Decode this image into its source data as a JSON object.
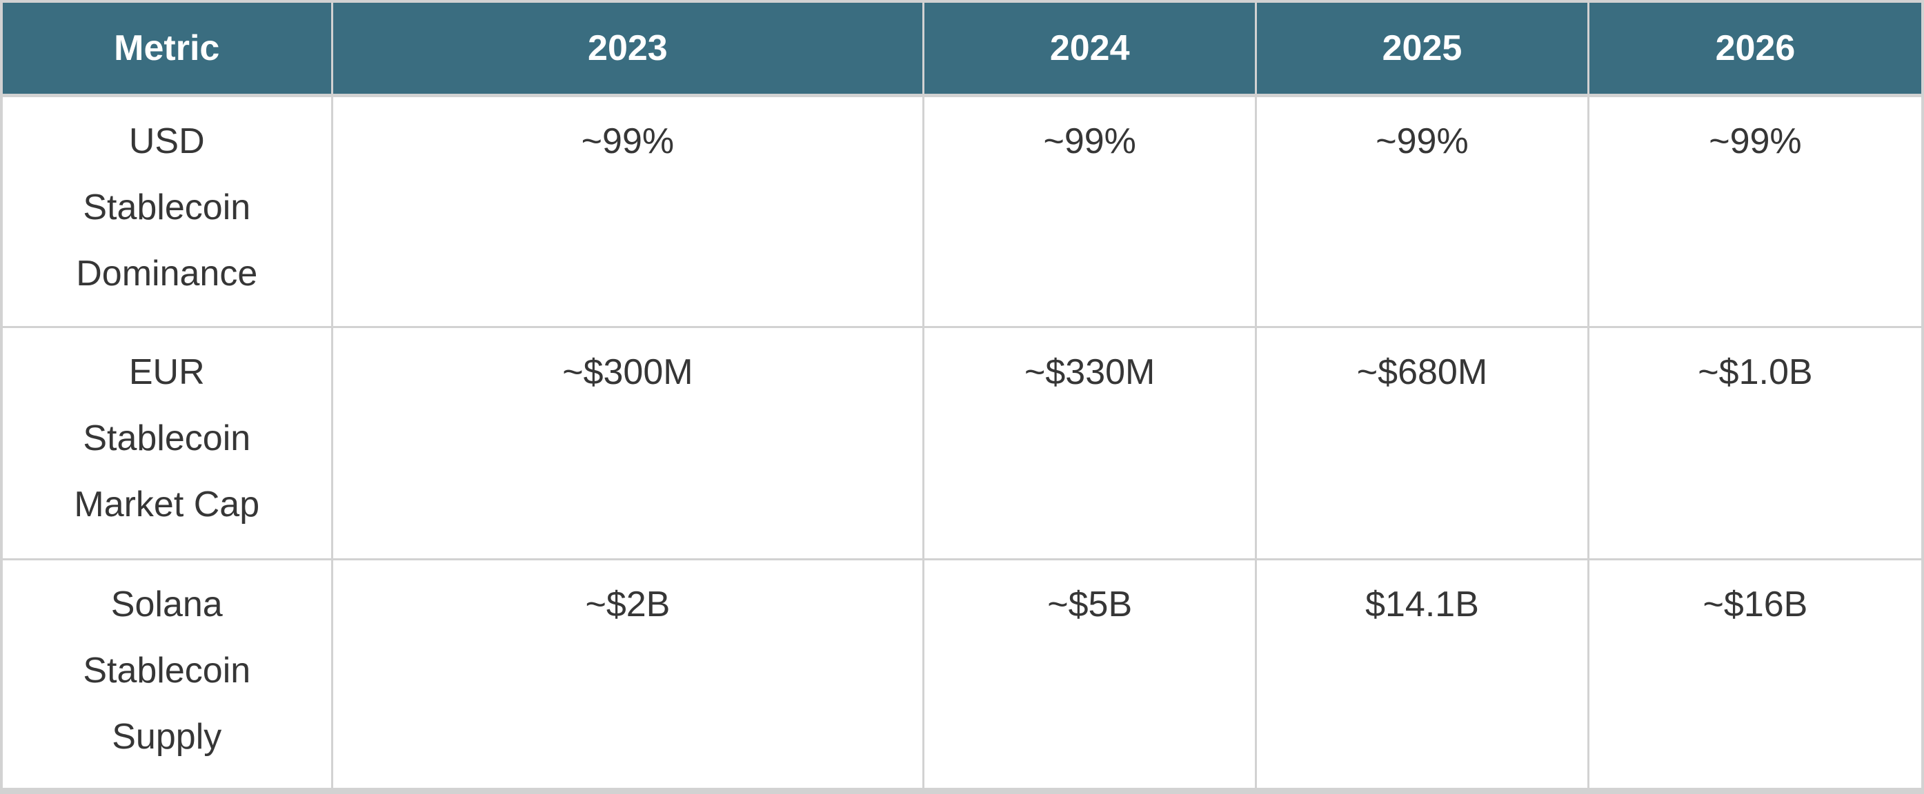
{
  "chart_data": {
    "type": "table",
    "columns": [
      "Metric",
      "2023",
      "2024",
      "2025",
      "2026"
    ],
    "rows": [
      [
        "USD Stablecoin Dominance",
        "~99%",
        "~99%",
        "~99%",
        "~99%"
      ],
      [
        "EUR Stablecoin Market Cap",
        "~$300M",
        "~$330M",
        "~$680M",
        "~$1.0B"
      ],
      [
        "Solana Stablecoin Supply",
        "~$2B",
        "~$5B",
        "$14.1B",
        "~$16B"
      ]
    ]
  },
  "table": {
    "headers": [
      "Metric",
      "2023",
      "2024",
      "2025",
      "2026"
    ],
    "rows": [
      {
        "metric": "USD Stablecoin Dominance",
        "values": [
          "~99%",
          "~99%",
          "~99%",
          "~99%"
        ]
      },
      {
        "metric": "EUR Stablecoin Market Cap",
        "values": [
          "~$300M",
          "~$330M",
          "~$680M",
          "~$1.0B"
        ]
      },
      {
        "metric": "Solana Stablecoin Supply",
        "values": [
          "~$2B",
          "~$5B",
          "$14.1B",
          "~$16B"
        ]
      }
    ]
  },
  "colors": {
    "header_bg": "#3A6D80",
    "header_text": "#FFFFFF",
    "body_text": "#363636",
    "grid": "#D2D2D2"
  }
}
